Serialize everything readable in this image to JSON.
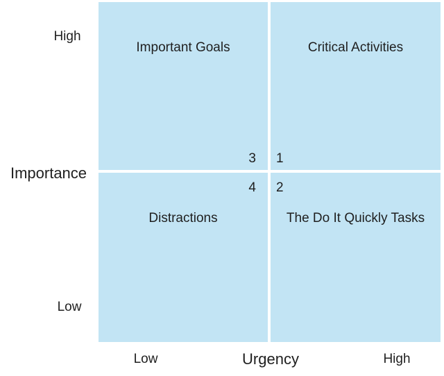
{
  "colors": {
    "quadrant_fill": "#C2E4F4",
    "background": "#FFFFFF",
    "text": "#1F1F1F"
  },
  "y_axis": {
    "title": "Importance",
    "high": "High",
    "low": "Low"
  },
  "x_axis": {
    "title": "Urgency",
    "low": "Low",
    "high": "High"
  },
  "quadrants": {
    "top_left": {
      "title": "Important Goals",
      "number": "3"
    },
    "top_right": {
      "title": "Critical Activities",
      "number": "1"
    },
    "bottom_left": {
      "title": "Distractions",
      "number": "4"
    },
    "bottom_right": {
      "title": "The Do It Quickly Tasks",
      "number": "2"
    }
  }
}
